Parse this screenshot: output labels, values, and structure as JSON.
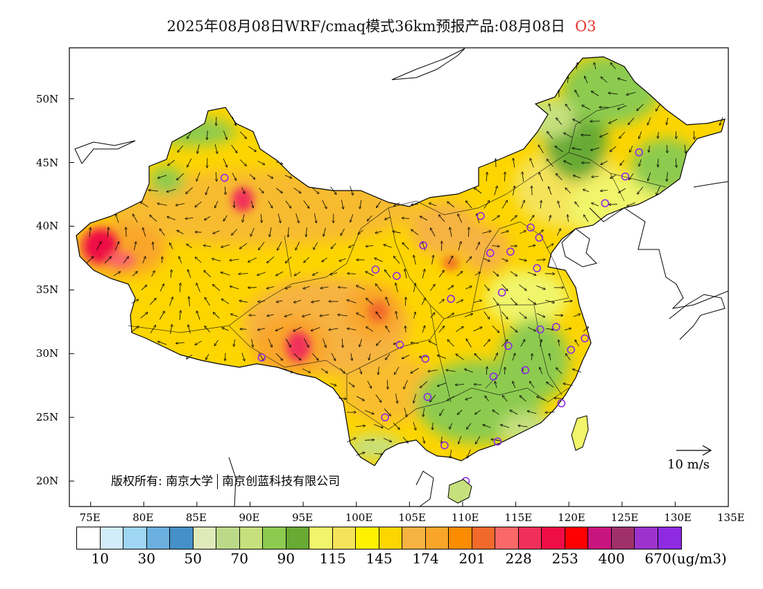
{
  "title": {
    "main": "2025年08月08日WRF/cmaq模式36km预报产品:08月08日",
    "species": "O3"
  },
  "credit": {
    "owner_label": "版权所有: 南京大学",
    "partner": "南京创蓝科技有限公司"
  },
  "wind_scale": {
    "label": "10 m/s"
  },
  "axes": {
    "lon_ticks": [
      "75E",
      "80E",
      "85E",
      "90E",
      "95E",
      "100E",
      "105E",
      "110E",
      "115E",
      "120E",
      "125E",
      "130E",
      "135E"
    ],
    "lat_ticks": [
      "20N",
      "25N",
      "30N",
      "35N",
      "40N",
      "45N",
      "50N"
    ],
    "lon_range": [
      73,
      135
    ],
    "lat_range": [
      18,
      54
    ]
  },
  "colorbar": {
    "unit": "(ug/m3)",
    "labels": [
      "10",
      "30",
      "50",
      "70",
      "90",
      "115",
      "145",
      "174",
      "201",
      "228",
      "253",
      "400",
      "670"
    ],
    "colors": [
      "#ffffff",
      "#d2ecfa",
      "#9ed6f3",
      "#6bb0de",
      "#4590c6",
      "#dfe9b9",
      "#bcd98a",
      "#c6e07d",
      "#8ccb50",
      "#68aa34",
      "#f0f56a",
      "#f5e35a",
      "#fff200",
      "#fdd500",
      "#f6b342",
      "#f9a52a",
      "#fb8c00",
      "#f26a2b",
      "#fb6868",
      "#f1305a",
      "#ef0d45",
      "#ff0000",
      "#c8147e",
      "#a0306a",
      "#9b33cc",
      "#8e2be2"
    ]
  },
  "stations": [
    {
      "name": "Urumqi",
      "lon": 87.6,
      "lat": 43.8
    },
    {
      "name": "Lhasa",
      "lon": 91.1,
      "lat": 29.7
    },
    {
      "name": "Xining",
      "lon": 101.8,
      "lat": 36.6
    },
    {
      "name": "Lanzhou",
      "lon": 103.8,
      "lat": 36.1
    },
    {
      "name": "Yinchuan",
      "lon": 106.3,
      "lat": 38.5
    },
    {
      "name": "Hohhot",
      "lon": 111.7,
      "lat": 40.8
    },
    {
      "name": "Beijing",
      "lon": 116.4,
      "lat": 39.9
    },
    {
      "name": "Tianjin",
      "lon": 117.2,
      "lat": 39.1
    },
    {
      "name": "Shijiazhuang",
      "lon": 114.5,
      "lat": 38.0
    },
    {
      "name": "Taiyuan",
      "lon": 112.6,
      "lat": 37.9
    },
    {
      "name": "Jinan",
      "lon": 117.0,
      "lat": 36.7
    },
    {
      "name": "Zhengzhou",
      "lon": 113.7,
      "lat": 34.8
    },
    {
      "name": "Xian",
      "lon": 108.9,
      "lat": 34.3
    },
    {
      "name": "Chengdu",
      "lon": 104.1,
      "lat": 30.7
    },
    {
      "name": "Chongqing",
      "lon": 106.5,
      "lat": 29.6
    },
    {
      "name": "Wuhan",
      "lon": 114.3,
      "lat": 30.6
    },
    {
      "name": "Hefei",
      "lon": 117.3,
      "lat": 31.9
    },
    {
      "name": "Nanjing",
      "lon": 118.8,
      "lat": 32.1
    },
    {
      "name": "Shanghai",
      "lon": 121.5,
      "lat": 31.2
    },
    {
      "name": "Hangzhou",
      "lon": 120.2,
      "lat": 30.3
    },
    {
      "name": "Nanchang",
      "lon": 115.9,
      "lat": 28.7
    },
    {
      "name": "Changsha",
      "lon": 112.9,
      "lat": 28.2
    },
    {
      "name": "Guiyang",
      "lon": 106.7,
      "lat": 26.6
    },
    {
      "name": "Kunming",
      "lon": 102.7,
      "lat": 25.0
    },
    {
      "name": "Nanning",
      "lon": 108.3,
      "lat": 22.8
    },
    {
      "name": "Guangzhou",
      "lon": 113.3,
      "lat": 23.1
    },
    {
      "name": "Fuzhou",
      "lon": 119.3,
      "lat": 26.1
    },
    {
      "name": "Haikou",
      "lon": 110.3,
      "lat": 20.0
    },
    {
      "name": "Shenyang",
      "lon": 123.4,
      "lat": 41.8
    },
    {
      "name": "Changchun",
      "lon": 125.3,
      "lat": 43.9
    },
    {
      "name": "Harbin",
      "lon": 126.6,
      "lat": 45.8
    }
  ]
}
